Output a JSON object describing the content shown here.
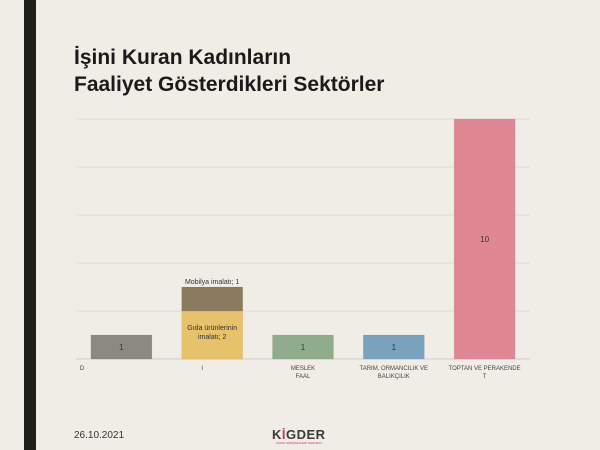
{
  "slide": {
    "title_line1": "İşini Kuran Kadınların",
    "title_line2": "Faaliyet Gösterdikleri Sektörler",
    "date": "26.10.2021",
    "logo_left": "K",
    "logo_accent": "İ",
    "logo_right": "GDER",
    "logo_sub": "KADIN GİRİŞİMCİLERİ DERNEĞİ"
  },
  "colors": {
    "background": "#efede6",
    "grid": "#dcdad2",
    "bar_gray": "#8a8a80",
    "bar_olive": "#8b7b5e",
    "bar_yellow": "#e6c26a",
    "bar_green": "#8fad8d",
    "bar_blue": "#7aa2bd",
    "bar_pink": "#e08794"
  },
  "chart_data": {
    "type": "bar",
    "stacked": true,
    "ylim": [
      0,
      10
    ],
    "grid": true,
    "bars": [
      {
        "category_lines": [
          "D"
        ],
        "segments": [
          {
            "value": 1,
            "label": "1",
            "color": "#8a8a80",
            "label_pos": "inside"
          }
        ]
      },
      {
        "category_lines": [
          "I"
        ],
        "segments": [
          {
            "value": 2,
            "label": "Gıda ürünlerinin imalatı; 2",
            "color": "#e6c26a",
            "label_pos": "inside"
          },
          {
            "value": 1,
            "label": "Mobilya imalatı; 1",
            "color": "#8b7b5e",
            "label_pos": "above"
          }
        ]
      },
      {
        "category_lines": [
          "MESLEK",
          "FAAL"
        ],
        "segments": [
          {
            "value": 1,
            "label": "1",
            "color": "#8fad8d",
            "label_pos": "inside"
          }
        ]
      },
      {
        "category_lines": [
          "TARIM, ORMANCILIK VE",
          "BALIKÇILIK"
        ],
        "segments": [
          {
            "value": 1,
            "label": "1",
            "color": "#7aa2bd",
            "label_pos": "inside"
          }
        ]
      },
      {
        "category_lines": [
          "TOPTAN VE PERAKENDE",
          "T"
        ],
        "segments": [
          {
            "value": 10,
            "label": "10",
            "color": "#e08794",
            "label_pos": "inside"
          }
        ]
      }
    ]
  }
}
